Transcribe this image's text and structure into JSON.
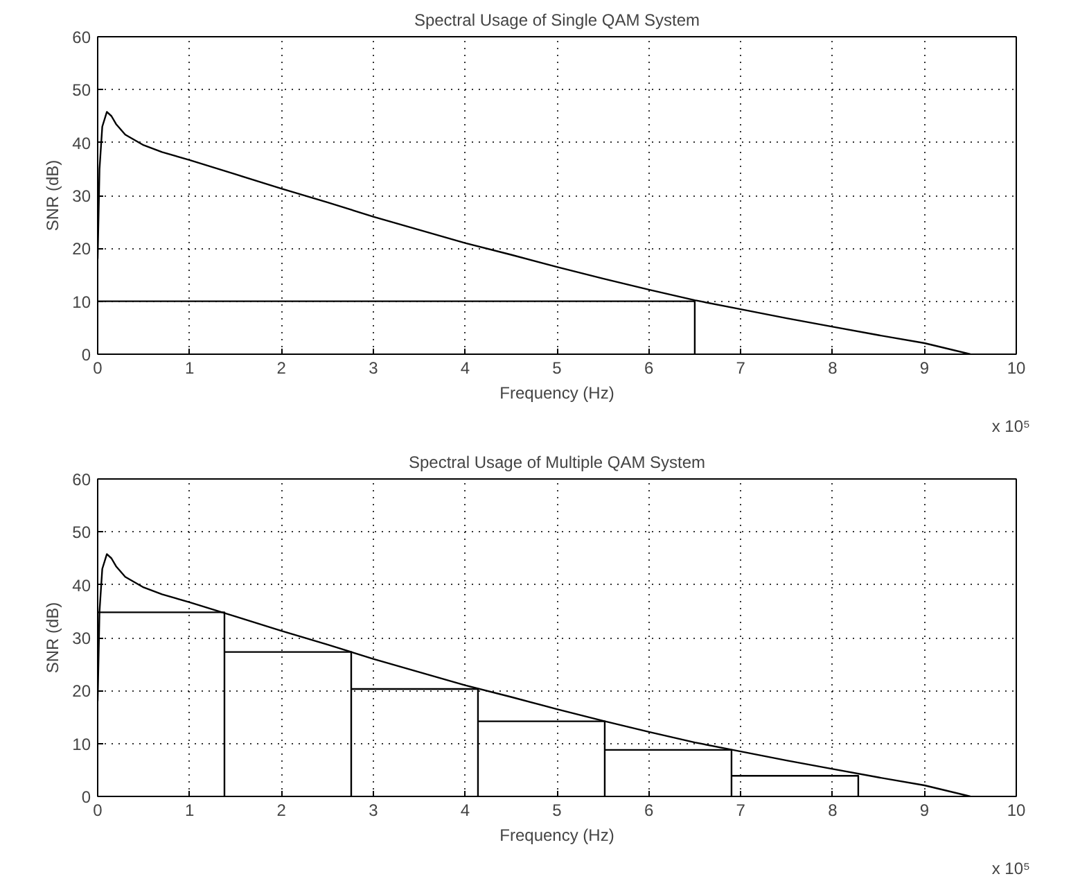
{
  "chart_data": [
    {
      "type": "line",
      "title": "Spectral Usage of Single QAM System",
      "xlabel": "Frequency (Hz)",
      "ylabel": "SNR (dB)",
      "annotations": [
        "x 10⁵"
      ],
      "xlim": [
        0,
        10
      ],
      "ylim": [
        0,
        60
      ],
      "xticks": [
        0,
        1,
        2,
        3,
        4,
        5,
        6,
        7,
        8,
        9,
        10
      ],
      "yticks": [
        0,
        10,
        20,
        30,
        40,
        50,
        60
      ],
      "grid": true,
      "line_style": "solid",
      "series": [
        {
          "color": "#000000",
          "x": [
            0,
            0.02,
            0.05,
            0.1,
            0.15,
            0.2,
            0.3,
            0.5,
            0.7,
            1,
            1.5,
            2,
            2.5,
            3,
            3.5,
            4,
            4.5,
            5,
            5.5,
            6,
            6.5,
            7,
            7.5,
            8,
            8.5,
            9,
            9.5
          ],
          "values": [
            18,
            35,
            43,
            45.8,
            45,
            43.5,
            41.5,
            39.5,
            38.2,
            36.7,
            34,
            31.3,
            28.7,
            26,
            23.5,
            21,
            18.8,
            16.5,
            14.3,
            12.2,
            10.2,
            8.5,
            6.8,
            5.2,
            3.6,
            2.1,
            0
          ]
        },
        {
          "color": "#000000",
          "x": [
            0,
            6.5,
            6.5
          ],
          "values": [
            10,
            10,
            0
          ]
        }
      ]
    },
    {
      "type": "line",
      "title": "Spectral Usage of Multiple QAM System",
      "xlabel": "Frequency (Hz)",
      "ylabel": "SNR (dB)",
      "annotations": [
        "x 10⁵"
      ],
      "xlim": [
        0,
        10
      ],
      "ylim": [
        0,
        60
      ],
      "xticks": [
        0,
        1,
        2,
        3,
        4,
        5,
        6,
        7,
        8,
        9,
        10
      ],
      "yticks": [
        0,
        10,
        20,
        30,
        40,
        50,
        60
      ],
      "grid": true,
      "line_style": "solid",
      "series": [
        {
          "color": "#000000",
          "x": [
            0,
            0.02,
            0.05,
            0.1,
            0.15,
            0.2,
            0.3,
            0.5,
            0.7,
            1,
            1.5,
            2,
            2.5,
            3,
            3.5,
            4,
            4.5,
            5,
            5.5,
            6,
            6.5,
            7,
            7.5,
            8,
            8.5,
            9,
            9.5
          ],
          "values": [
            18,
            35,
            43,
            45.8,
            45,
            43.5,
            41.5,
            39.5,
            38.2,
            36.7,
            34,
            31.3,
            28.7,
            26,
            23.5,
            21,
            18.8,
            16.5,
            14.3,
            12.2,
            10.2,
            8.5,
            6.8,
            5.2,
            3.6,
            2.1,
            0
          ]
        },
        {
          "color": "#000000",
          "x": [
            0,
            1.38,
            1.38,
            1.38,
            2.76,
            2.76,
            2.76,
            4.14,
            4.14,
            4.14,
            5.52,
            5.52,
            5.52,
            6.9,
            6.9,
            6.9,
            8.28,
            8.28
          ],
          "values": [
            34.8,
            34.8,
            0,
            27.3,
            27.3,
            0,
            20.3,
            20.3,
            0,
            14.2,
            14.2,
            0,
            8.8,
            8.8,
            0,
            3.9,
            3.9,
            0
          ]
        }
      ]
    }
  ]
}
